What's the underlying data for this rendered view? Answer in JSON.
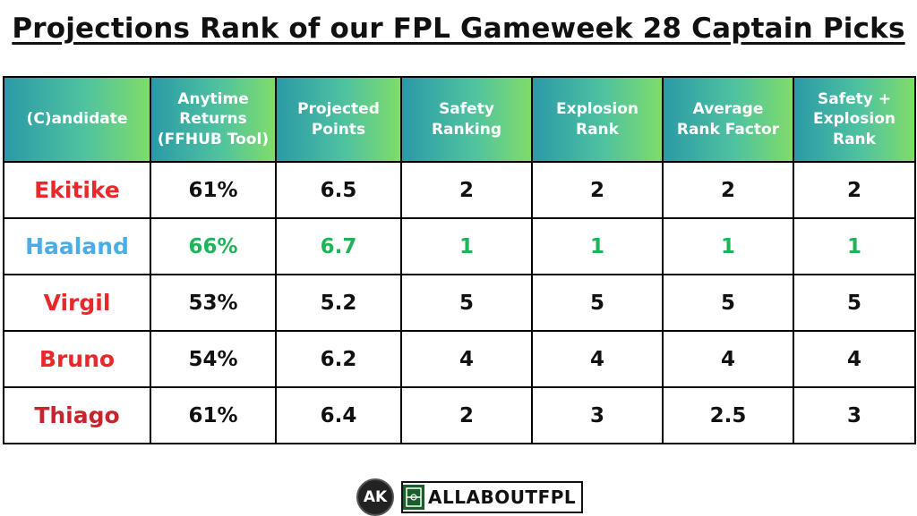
{
  "title": "Projections Rank of our FPL Gameweek 28 Captain Picks",
  "headers": [
    [
      "(C)andidate"
    ],
    [
      "Anytime",
      "Returns",
      "(FFHUB Tool)"
    ],
    [
      "Projected",
      "Points"
    ],
    [
      "Safety",
      "Ranking"
    ],
    [
      "Explosion",
      "Rank"
    ],
    [
      "Average",
      "Rank Factor"
    ],
    [
      "Safety +",
      "Explosion",
      "Rank"
    ]
  ],
  "rows": [
    {
      "name": "Ekitike",
      "name_color": "#e8282a",
      "highlight": false,
      "values": [
        "61%",
        "6.5",
        "2",
        "2",
        "2",
        "2"
      ]
    },
    {
      "name": "Haaland",
      "name_color": "#4aaee6",
      "highlight": true,
      "values": [
        "66%",
        "6.7",
        "1",
        "1",
        "1",
        "1"
      ]
    },
    {
      "name": "Virgil",
      "name_color": "#e8282a",
      "highlight": false,
      "values": [
        "53%",
        "5.2",
        "5",
        "5",
        "5",
        "5"
      ]
    },
    {
      "name": "Bruno",
      "name_color": "#e8282a",
      "highlight": false,
      "values": [
        "54%",
        "6.2",
        "4",
        "4",
        "4",
        "4"
      ]
    },
    {
      "name": "Thiago",
      "name_color": "#c8242b",
      "highlight": false,
      "values": [
        "61%",
        "6.4",
        "2",
        "3",
        "2.5",
        "3"
      ]
    }
  ],
  "footer": {
    "logo_initials": "AK",
    "brand": "ALLABOUTFPL"
  }
}
